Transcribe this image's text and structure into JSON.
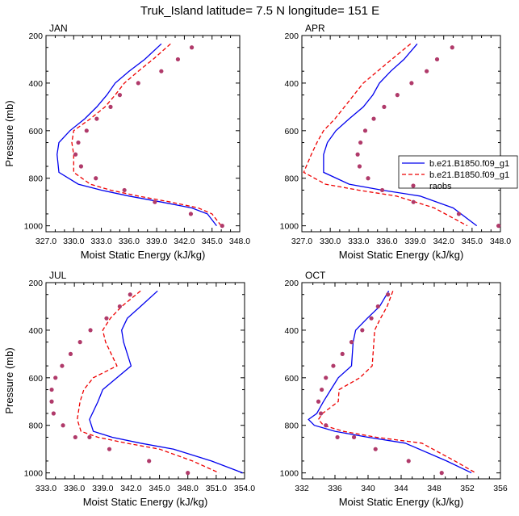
{
  "title": "Truk_Island  latitude= 7.5 N longitude= 151 E",
  "colors": {
    "model1": "#0000ee",
    "model2": "#ee0000",
    "raobs": "#b03a6a"
  },
  "legend": {
    "panel": "APR",
    "entries": [
      "b.e21.B1850.f09_g1",
      "b.e21.B1850.f09_g1",
      "raobs"
    ]
  },
  "chart_data": [
    {
      "type": "line",
      "panel": "JAN",
      "xlabel": "Moist Static Energy (kJ/kg)",
      "ylabel": "Pressure (mb)",
      "xlim": [
        327,
        348
      ],
      "ylim": [
        200,
        1025
      ],
      "xticks": [
        "327.0",
        "330.0",
        "333.0",
        "336.0",
        "339.0",
        "342.0",
        "345.0",
        "348.0"
      ],
      "xtick_values": [
        327,
        330,
        333,
        336,
        339,
        342,
        345,
        348
      ],
      "yticks": [
        "200",
        "400",
        "600",
        "800",
        "1000"
      ],
      "y_reversed": true,
      "series": [
        {
          "name": "b.e21.B1850.f09_g1",
          "style": "solid",
          "x": [
            339.5,
            337.7,
            336.0,
            334.5,
            333.6,
            332.5,
            331.2,
            329.6,
            328.4,
            328.2,
            328.4,
            330.5,
            333.0,
            336.0,
            339.5,
            342.8,
            344.5,
            345.5
          ],
          "y": [
            235,
            300,
            350,
            400,
            450,
            500,
            550,
            600,
            650,
            700,
            775,
            825,
            850,
            875,
            900,
            925,
            950,
            1000
          ]
        },
        {
          "name": "b.e21.B1850.f09_g1",
          "style": "dashed",
          "x": [
            340.5,
            338.6,
            337.0,
            335.5,
            334.5,
            333.4,
            331.8,
            330.0,
            329.8,
            330.0,
            330.0,
            331.8,
            334.0,
            337.0,
            340.5,
            343.5,
            345.0,
            346.0
          ],
          "y": [
            235,
            300,
            350,
            400,
            450,
            500,
            550,
            600,
            650,
            700,
            775,
            825,
            850,
            875,
            900,
            925,
            950,
            1000
          ]
        },
        {
          "name": "raobs",
          "style": "markers",
          "x": [
            342.8,
            341.3,
            339.5,
            337.0,
            335.0,
            334.0,
            332.5,
            331.4,
            330.5,
            330.2,
            330.8,
            332.4,
            335.5,
            338.8,
            342.7,
            346.1
          ],
          "y": [
            250,
            300,
            350,
            400,
            450,
            500,
            550,
            600,
            650,
            700,
            750,
            800,
            850,
            900,
            950,
            1000
          ]
        }
      ]
    },
    {
      "type": "line",
      "panel": "APR",
      "xlabel": "Moist Static Energy (kJ/kg)",
      "ylabel": "",
      "xlim": [
        327,
        348
      ],
      "ylim": [
        200,
        1025
      ],
      "xticks": [
        "327.0",
        "330.0",
        "333.0",
        "336.0",
        "339.0",
        "342.0",
        "345.0",
        "348.0"
      ],
      "xtick_values": [
        327,
        330,
        333,
        336,
        339,
        342,
        345,
        348
      ],
      "yticks": [
        "200",
        "400",
        "600",
        "800",
        "1000"
      ],
      "y_reversed": true,
      "series": [
        {
          "name": "b.e21.B1850.f09_g1",
          "style": "solid",
          "x": [
            339.2,
            337.8,
            336.4,
            335.2,
            334.5,
            333.5,
            332.0,
            330.6,
            329.7,
            329.3,
            329.3,
            332.0,
            335.5,
            339.5,
            343.0,
            345.5
          ],
          "y": [
            235,
            300,
            350,
            400,
            450,
            500,
            550,
            600,
            650,
            700,
            775,
            825,
            850,
            875,
            925,
            1000
          ]
        },
        {
          "name": "b.e21.B1850.f09_g1",
          "style": "dashed",
          "x": [
            338.5,
            336.5,
            335.0,
            333.5,
            332.5,
            331.5,
            330.5,
            329.3,
            328.6,
            328.0,
            327.2,
            329.5,
            333.0,
            337.0,
            341.0,
            344.5
          ],
          "y": [
            235,
            300,
            350,
            400,
            450,
            500,
            550,
            600,
            650,
            700,
            775,
            825,
            850,
            875,
            925,
            1000
          ]
        },
        {
          "name": "raobs",
          "style": "markers",
          "x": [
            342.9,
            341.3,
            340.2,
            338.6,
            337.1,
            335.7,
            334.6,
            333.7,
            333.2,
            332.9,
            333.1,
            334.0,
            335.5,
            338.8,
            343.6,
            347.8
          ],
          "y": [
            250,
            300,
            350,
            400,
            450,
            500,
            550,
            600,
            650,
            700,
            750,
            800,
            850,
            900,
            950,
            1000
          ]
        }
      ]
    },
    {
      "type": "line",
      "panel": "JUL",
      "xlabel": "Moist Static Energy (kJ/kg)",
      "ylabel": "Pressure (mb)",
      "xlim": [
        333,
        354
      ],
      "ylim": [
        200,
        1025
      ],
      "xticks": [
        "333.0",
        "336.0",
        "339.0",
        "342.0",
        "345.0",
        "348.0",
        "351.0",
        "354.0"
      ],
      "xtick_values": [
        333,
        336,
        339,
        342,
        345,
        348,
        351,
        354
      ],
      "yticks": [
        "200",
        "400",
        "600",
        "800",
        "1000"
      ],
      "y_reversed": true,
      "series": [
        {
          "name": "b.e21.B1850.f09_g1",
          "style": "solid",
          "x": [
            344.8,
            343.0,
            341.6,
            341.0,
            341.2,
            342.0,
            340.5,
            339.0,
            338.5,
            337.6,
            338.0,
            340.0,
            343.0,
            346.5,
            350.5,
            353.8
          ],
          "y": [
            235,
            300,
            350,
            400,
            450,
            550,
            600,
            650,
            700,
            775,
            825,
            850,
            875,
            900,
            950,
            1000
          ]
        },
        {
          "name": "b.e21.B1850.f09_g1",
          "style": "dashed",
          "x": [
            343.0,
            341.0,
            339.8,
            339.0,
            339.3,
            340.5,
            338.0,
            337.0,
            336.6,
            336.3,
            336.7,
            338.5,
            341.5,
            345.0,
            348.5,
            351.3
          ],
          "y": [
            235,
            300,
            350,
            400,
            450,
            550,
            600,
            650,
            700,
            775,
            825,
            850,
            875,
            900,
            950,
            1000
          ]
        },
        {
          "name": "raobs",
          "style": "markers",
          "x": [
            341.9,
            340.8,
            339.4,
            337.7,
            336.6,
            335.6,
            334.7,
            334.0,
            333.6,
            333.6,
            333.8,
            334.8,
            336.1,
            337.6,
            339.7,
            343.9,
            348.0
          ],
          "y": [
            250,
            300,
            350,
            400,
            450,
            500,
            550,
            600,
            650,
            700,
            750,
            800,
            850,
            850,
            900,
            950,
            1000
          ]
        }
      ]
    },
    {
      "type": "line",
      "panel": "OCT",
      "xlabel": "Moist Static Energy (kJ/kg)",
      "ylabel": "",
      "xlim": [
        332,
        356
      ],
      "ylim": [
        200,
        1025
      ],
      "xticks": [
        "332",
        "336",
        "340",
        "344",
        "348",
        "352",
        "356"
      ],
      "xtick_values": [
        332,
        336,
        340,
        344,
        348,
        352,
        356
      ],
      "yticks": [
        "200",
        "400",
        "600",
        "800",
        "1000"
      ],
      "y_reversed": true,
      "series": [
        {
          "name": "b.e21.B1850.f09_g1",
          "style": "solid",
          "x": [
            342.5,
            341.4,
            339.9,
            338.5,
            338.2,
            338.0,
            336.4,
            335.5,
            334.6,
            333.8,
            332.8,
            333.5,
            336.0,
            340.0,
            344.5,
            349.5,
            352.5
          ],
          "y": [
            235,
            300,
            350,
            400,
            450,
            550,
            600,
            650,
            700,
            750,
            775,
            800,
            825,
            850,
            875,
            950,
            1000
          ]
        },
        {
          "name": "b.e21.B1850.f09_g1",
          "style": "dashed",
          "x": [
            343.0,
            342.3,
            341.5,
            340.8,
            340.7,
            340.5,
            339.0,
            336.5,
            336.4,
            334.5,
            334.0,
            334.6,
            337.0,
            341.0,
            346.5,
            350.5,
            353.0
          ],
          "y": [
            235,
            300,
            350,
            400,
            450,
            550,
            600,
            650,
            700,
            750,
            775,
            800,
            825,
            850,
            875,
            950,
            1000
          ]
        },
        {
          "name": "raobs",
          "style": "markers",
          "x": [
            342.4,
            341.2,
            340.4,
            339.3,
            338.0,
            336.9,
            335.8,
            334.9,
            334.4,
            334.0,
            334.3,
            334.9,
            336.3,
            338.3,
            340.9,
            344.9,
            348.9
          ],
          "y": [
            250,
            300,
            350,
            400,
            450,
            500,
            550,
            600,
            650,
            700,
            750,
            800,
            850,
            850,
            900,
            950,
            1000
          ]
        }
      ]
    }
  ]
}
